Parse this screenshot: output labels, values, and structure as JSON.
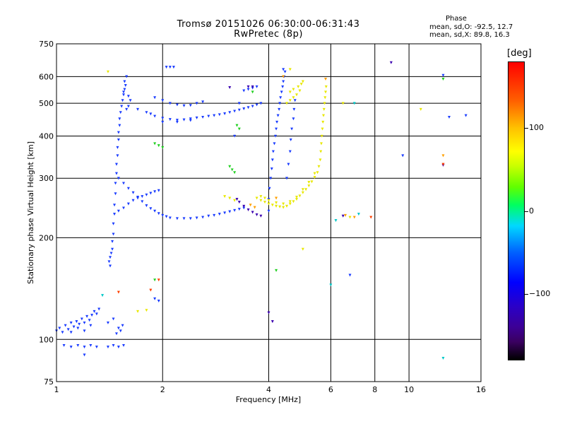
{
  "chart_data": {
    "type": "scatter",
    "title": "Tromsø 20151026 06:30:00-06:31:43",
    "subtitle": "RwPretec (8p)",
    "xlabel": "Frequency [MHz]",
    "ylabel": "Stationary phase Virtual Height [km]",
    "xscale": "log",
    "yscale": "log",
    "xlim": [
      1,
      16
    ],
    "ylim": [
      75,
      750
    ],
    "x_ticks": [
      "1",
      "2",
      "4",
      "6",
      "8",
      "10",
      "16"
    ],
    "x_tick_values": [
      1,
      2,
      4,
      6,
      8,
      10,
      16
    ],
    "y_ticks": [
      "75",
      "100",
      "200",
      "300",
      "400",
      "500",
      "600",
      "750"
    ],
    "y_tick_values": [
      75,
      100,
      200,
      300,
      400,
      500,
      600,
      750
    ],
    "grid": true,
    "phase_stats": {
      "header": "Phase",
      "line_o": "mean, sd,O: -92.5, 12.7",
      "line_x": "mean, sd,X:  89.8, 16.3"
    },
    "colorbar": {
      "unit": "[deg]",
      "range": [
        -180,
        180
      ],
      "ticks": [
        "100",
        "0",
        "−100"
      ],
      "tick_values": [
        100,
        0,
        -100
      ]
    },
    "series": [
      {
        "phase": -100,
        "color": "#1a3cff",
        "points": [
          [
            1.0,
            106
          ],
          [
            1.02,
            108
          ],
          [
            1.04,
            105
          ],
          [
            1.06,
            110
          ],
          [
            1.08,
            107
          ],
          [
            1.1,
            112
          ],
          [
            1.12,
            109
          ],
          [
            1.14,
            113
          ],
          [
            1.16,
            111
          ],
          [
            1.18,
            115
          ],
          [
            1.2,
            112
          ],
          [
            1.22,
            117
          ],
          [
            1.24,
            114
          ],
          [
            1.26,
            118
          ],
          [
            1.28,
            121
          ],
          [
            1.3,
            119
          ],
          [
            1.32,
            123
          ],
          [
            1.1,
            105
          ],
          [
            1.15,
            108
          ],
          [
            1.2,
            106
          ],
          [
            1.25,
            110
          ],
          [
            1.05,
            96
          ],
          [
            1.1,
            95
          ],
          [
            1.15,
            96
          ],
          [
            1.2,
            95
          ],
          [
            1.25,
            96
          ],
          [
            1.3,
            95
          ],
          [
            1.4,
            95
          ],
          [
            1.45,
            96
          ],
          [
            1.5,
            95
          ],
          [
            1.55,
            96
          ],
          [
            1.48,
            104
          ],
          [
            1.52,
            106
          ],
          [
            1.5,
            108
          ],
          [
            1.54,
            110
          ],
          [
            1.4,
            112
          ],
          [
            1.45,
            115
          ],
          [
            1.41,
            170
          ],
          [
            1.42,
            175
          ],
          [
            1.43,
            180
          ],
          [
            1.44,
            185
          ],
          [
            1.42,
            165
          ],
          [
            1.44,
            195
          ],
          [
            1.45,
            205
          ],
          [
            1.45,
            220
          ],
          [
            1.46,
            235
          ],
          [
            1.46,
            250
          ],
          [
            1.47,
            270
          ],
          [
            1.47,
            290
          ],
          [
            1.48,
            310
          ],
          [
            1.48,
            330
          ],
          [
            1.49,
            350
          ],
          [
            1.49,
            370
          ],
          [
            1.5,
            390
          ],
          [
            1.5,
            410
          ],
          [
            1.51,
            430
          ],
          [
            1.51,
            450
          ],
          [
            1.52,
            470
          ],
          [
            1.53,
            490
          ],
          [
            1.54,
            510
          ],
          [
            1.55,
            530
          ],
          [
            1.56,
            550
          ],
          [
            1.57,
            565
          ],
          [
            1.56,
            580
          ],
          [
            1.58,
            600
          ],
          [
            1.55,
            540
          ],
          [
            1.6,
            525
          ],
          [
            1.62,
            510
          ],
          [
            1.58,
            480
          ],
          [
            1.5,
            240
          ],
          [
            1.55,
            245
          ],
          [
            1.6,
            252
          ],
          [
            1.65,
            258
          ],
          [
            1.7,
            262
          ],
          [
            1.75,
            265
          ],
          [
            1.8,
            268
          ],
          [
            1.85,
            271
          ],
          [
            1.9,
            274
          ],
          [
            1.95,
            276
          ],
          [
            1.5,
            300
          ],
          [
            1.55,
            290
          ],
          [
            1.6,
            280
          ],
          [
            1.65,
            272
          ],
          [
            1.7,
            264
          ],
          [
            1.75,
            256
          ],
          [
            1.8,
            249
          ],
          [
            1.85,
            244
          ],
          [
            1.9,
            240
          ],
          [
            1.95,
            236
          ],
          [
            2.0,
            233
          ],
          [
            2.05,
            231
          ],
          [
            2.1,
            229
          ],
          [
            2.2,
            228
          ],
          [
            2.3,
            228
          ],
          [
            2.4,
            228
          ],
          [
            2.5,
            229
          ],
          [
            2.6,
            230
          ],
          [
            2.7,
            232
          ],
          [
            2.8,
            233
          ],
          [
            2.9,
            235
          ],
          [
            3.0,
            237
          ],
          [
            3.1,
            239
          ],
          [
            3.2,
            241
          ],
          [
            3.3,
            243
          ],
          [
            3.4,
            245
          ],
          [
            1.6,
            490
          ],
          [
            1.7,
            480
          ],
          [
            1.8,
            470
          ],
          [
            1.85,
            465
          ],
          [
            1.9,
            458
          ],
          [
            2.0,
            452
          ],
          [
            2.1,
            448
          ],
          [
            2.2,
            446
          ],
          [
            2.3,
            447
          ],
          [
            2.4,
            450
          ],
          [
            2.5,
            453
          ],
          [
            2.6,
            455
          ],
          [
            2.7,
            458
          ],
          [
            2.8,
            460
          ],
          [
            2.9,
            463
          ],
          [
            3.0,
            466
          ],
          [
            3.1,
            470
          ],
          [
            3.2,
            474
          ],
          [
            3.3,
            478
          ],
          [
            3.4,
            482
          ],
          [
            3.5,
            486
          ],
          [
            3.6,
            490
          ],
          [
            3.7,
            495
          ],
          [
            3.8,
            500
          ],
          [
            1.9,
            520
          ],
          [
            2.0,
            510
          ],
          [
            2.1,
            500
          ],
          [
            2.2,
            495
          ],
          [
            2.3,
            492
          ],
          [
            2.4,
            493
          ],
          [
            2.5,
            500
          ],
          [
            2.6,
            505
          ],
          [
            3.5,
            550
          ],
          [
            3.6,
            555
          ],
          [
            3.7,
            560
          ],
          [
            3.4,
            545
          ],
          [
            4.0,
            240
          ],
          [
            4.0,
            260
          ],
          [
            4.02,
            280
          ],
          [
            4.05,
            300
          ],
          [
            4.08,
            320
          ],
          [
            4.1,
            340
          ],
          [
            4.12,
            360
          ],
          [
            4.15,
            380
          ],
          [
            4.18,
            400
          ],
          [
            4.2,
            420
          ],
          [
            4.22,
            440
          ],
          [
            4.25,
            460
          ],
          [
            4.28,
            480
          ],
          [
            4.3,
            500
          ],
          [
            4.32,
            520
          ],
          [
            4.35,
            540
          ],
          [
            4.38,
            560
          ],
          [
            4.4,
            580
          ],
          [
            4.42,
            600
          ],
          [
            4.45,
            620
          ],
          [
            4.4,
            630
          ],
          [
            4.5,
            300
          ],
          [
            4.55,
            330
          ],
          [
            4.6,
            360
          ],
          [
            4.62,
            390
          ],
          [
            4.65,
            420
          ],
          [
            4.7,
            450
          ],
          [
            4.72,
            480
          ],
          [
            4.75,
            510
          ],
          [
            2.05,
            640
          ],
          [
            2.1,
            640
          ],
          [
            2.15,
            640
          ],
          [
            1.9,
            132
          ],
          [
            1.95,
            130
          ],
          [
            6.8,
            155
          ],
          [
            12.5,
            605
          ],
          [
            14.5,
            460
          ],
          [
            13.0,
            455
          ],
          [
            9.6,
            350
          ],
          [
            1.2,
            90
          ],
          [
            3.2,
            400
          ],
          [
            3.3,
            500
          ],
          [
            2.0,
            440
          ],
          [
            2.2,
            440
          ],
          [
            2.4,
            445
          ]
        ]
      },
      {
        "phase": -130,
        "color": "#3a00b0",
        "points": [
          [
            3.3,
            255
          ],
          [
            3.4,
            248
          ],
          [
            3.5,
            242
          ],
          [
            3.6,
            238
          ],
          [
            3.7,
            234
          ],
          [
            3.8,
            232
          ],
          [
            3.5,
            560
          ],
          [
            3.6,
            560
          ],
          [
            3.25,
            260
          ],
          [
            4.0,
            120
          ],
          [
            4.1,
            113
          ],
          [
            8.9,
            660
          ],
          [
            12.5,
            328
          ],
          [
            6.5,
            232
          ],
          [
            3.1,
            557
          ]
        ]
      },
      {
        "phase": 80,
        "color": "#e8e800",
        "points": [
          [
            3.7,
            262
          ],
          [
            3.8,
            258
          ],
          [
            3.9,
            255
          ],
          [
            4.0,
            252
          ],
          [
            4.1,
            250
          ],
          [
            4.2,
            248
          ],
          [
            4.3,
            247
          ],
          [
            4.4,
            246
          ],
          [
            4.5,
            248
          ],
          [
            4.6,
            252
          ],
          [
            4.7,
            256
          ],
          [
            4.8,
            260
          ],
          [
            4.9,
            266
          ],
          [
            5.0,
            272
          ],
          [
            5.1,
            278
          ],
          [
            5.2,
            285
          ],
          [
            5.3,
            293
          ],
          [
            5.4,
            302
          ],
          [
            5.5,
            312
          ],
          [
            5.55,
            325
          ],
          [
            5.6,
            340
          ],
          [
            5.62,
            360
          ],
          [
            5.64,
            380
          ],
          [
            5.66,
            400
          ],
          [
            5.68,
            420
          ],
          [
            5.7,
            440
          ],
          [
            5.72,
            460
          ],
          [
            5.74,
            480
          ],
          [
            5.76,
            500
          ],
          [
            5.78,
            520
          ],
          [
            5.8,
            540
          ],
          [
            5.82,
            560
          ],
          [
            3.8,
            265
          ],
          [
            3.9,
            262
          ],
          [
            4.0,
            258
          ],
          [
            4.2,
            254
          ],
          [
            4.4,
            252
          ],
          [
            4.6,
            256
          ],
          [
            4.8,
            264
          ],
          [
            5.0,
            278
          ],
          [
            5.2,
            292
          ],
          [
            5.4,
            310
          ],
          [
            4.5,
            500
          ],
          [
            4.6,
            510
          ],
          [
            4.7,
            520
          ],
          [
            4.8,
            530
          ],
          [
            4.9,
            545
          ],
          [
            4.85,
            560
          ],
          [
            4.95,
            570
          ],
          [
            5.0,
            580
          ],
          [
            4.6,
            540
          ],
          [
            4.7,
            550
          ],
          [
            3.0,
            265
          ],
          [
            3.1,
            262
          ],
          [
            3.2,
            258
          ],
          [
            1.8,
            122
          ],
          [
            1.7,
            121
          ],
          [
            4.6,
            630
          ],
          [
            5.0,
            185
          ],
          [
            6.5,
            500
          ],
          [
            6.8,
            230
          ],
          [
            1.4,
            620
          ],
          [
            10.8,
            480
          ]
        ]
      },
      {
        "phase": 140,
        "color": "#ffa000",
        "points": [
          [
            3.55,
            250
          ],
          [
            3.65,
            246
          ],
          [
            4.2,
            262
          ],
          [
            4.4,
            600
          ],
          [
            5.8,
            590
          ],
          [
            6.6,
            233
          ],
          [
            7.0,
            230
          ],
          [
            12.5,
            350
          ]
        ]
      },
      {
        "phase": 30,
        "color": "#20d020",
        "points": [
          [
            1.9,
            380
          ],
          [
            1.95,
            375
          ],
          [
            2.0,
            370
          ],
          [
            3.1,
            325
          ],
          [
            3.15,
            318
          ],
          [
            3.2,
            312
          ],
          [
            3.25,
            430
          ],
          [
            3.3,
            420
          ],
          [
            3.6,
            540
          ],
          [
            4.2,
            160
          ],
          [
            1.9,
            150
          ],
          [
            12.5,
            590
          ]
        ]
      },
      {
        "phase": 0,
        "color": "#00c8c8",
        "points": [
          [
            6.0,
            145
          ],
          [
            7.0,
            500
          ],
          [
            7.2,
            235
          ],
          [
            12.5,
            88
          ],
          [
            6.2,
            225
          ],
          [
            1.35,
            135
          ]
        ]
      },
      {
        "phase": 150,
        "color": "#ff4000",
        "points": [
          [
            1.85,
            140
          ],
          [
            1.95,
            150
          ],
          [
            12.5,
            330
          ],
          [
            7.8,
            230
          ],
          [
            1.5,
            138
          ]
        ]
      }
    ]
  }
}
